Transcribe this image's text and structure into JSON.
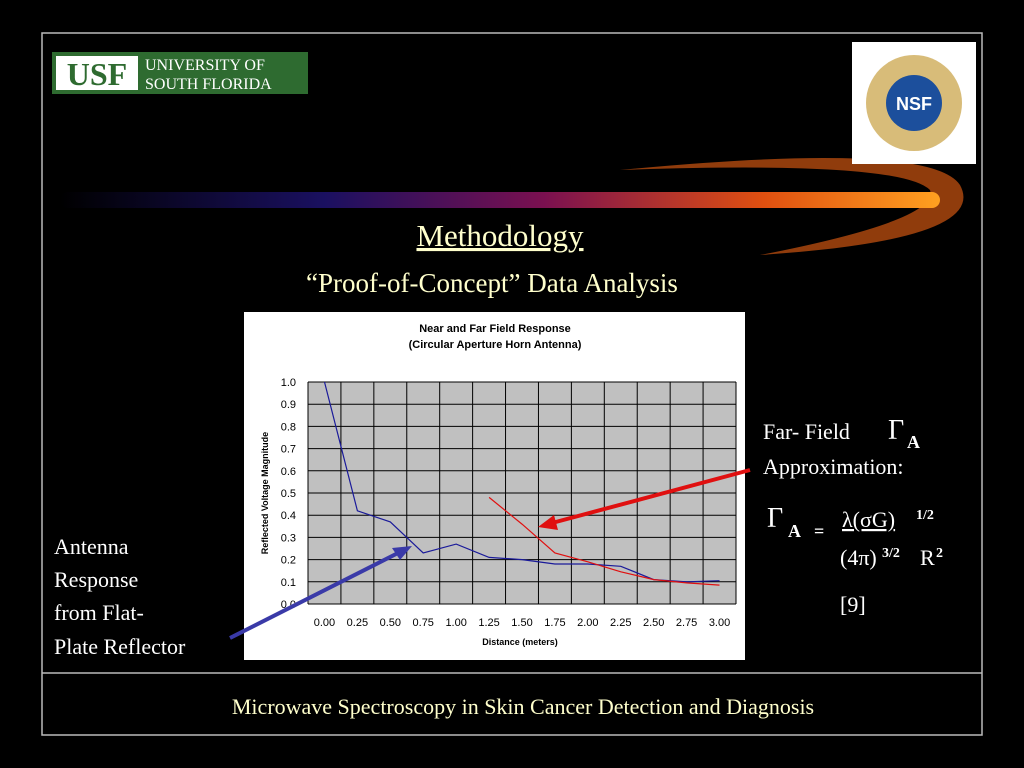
{
  "logos": {
    "usf": "USF",
    "usf_line1": "UNIVERSITY OF",
    "usf_line2": "SOUTH FLORIDA",
    "nsf": "NSF"
  },
  "header": {
    "title": "Methodology",
    "subtitle": "“Proof-of-Concept” Data Analysis"
  },
  "left_note": {
    "lines": [
      "Antenna",
      "Response",
      "from Flat-",
      "Plate Reflector"
    ]
  },
  "right_note": {
    "line1": "Far- Field",
    "symbol": "Γ",
    "subscript": "A",
    "line2": "Approximation:"
  },
  "formula": {
    "symbol": "Γ",
    "subscript": "A",
    "equals": "=",
    "numerator": "λ(σG)",
    "numerator_exp": "1/2",
    "denominator_a": "(4π)",
    "denominator_a_exp": "3/2",
    "denominator_b": "R",
    "denominator_b_exp": "2",
    "reference": "[9]"
  },
  "footer": "Microwave Spectroscopy in Skin Cancer Detection and Diagnosis",
  "chart_data": {
    "type": "line",
    "title": "Near and Far Field Response",
    "subtitle": "(Circular Aperture Horn Antenna)",
    "x_label": "Distance (meters)",
    "y_label": "Reflected Voltage Magnitude",
    "categories": [
      "0.00",
      "0.25",
      "0.50",
      "0.75",
      "1.00",
      "1.25",
      "1.50",
      "1.75",
      "2.00",
      "2.25",
      "2.50",
      "2.75",
      "3.00"
    ],
    "series": [
      {
        "color": "#1a1a9a",
        "values": [
          1.0,
          0.42,
          0.37,
          0.23,
          0.27,
          0.21,
          0.2,
          0.18,
          0.18,
          0.17,
          0.11,
          0.1,
          0.105
        ]
      },
      {
        "color": "#e01010",
        "values": [
          null,
          null,
          null,
          null,
          null,
          0.48,
          0.36,
          0.23,
          0.19,
          0.145,
          0.11,
          0.095,
          0.085
        ]
      }
    ],
    "ylim": [
      0,
      1
    ],
    "yticks": [
      {
        "value": 0,
        "label": "0.0"
      },
      0.1,
      0.2,
      0.3,
      0.4,
      0.5,
      0.6,
      0.7,
      0.8,
      0.9,
      {
        "value": 1,
        "label": "1.0"
      }
    ],
    "grid": true
  }
}
